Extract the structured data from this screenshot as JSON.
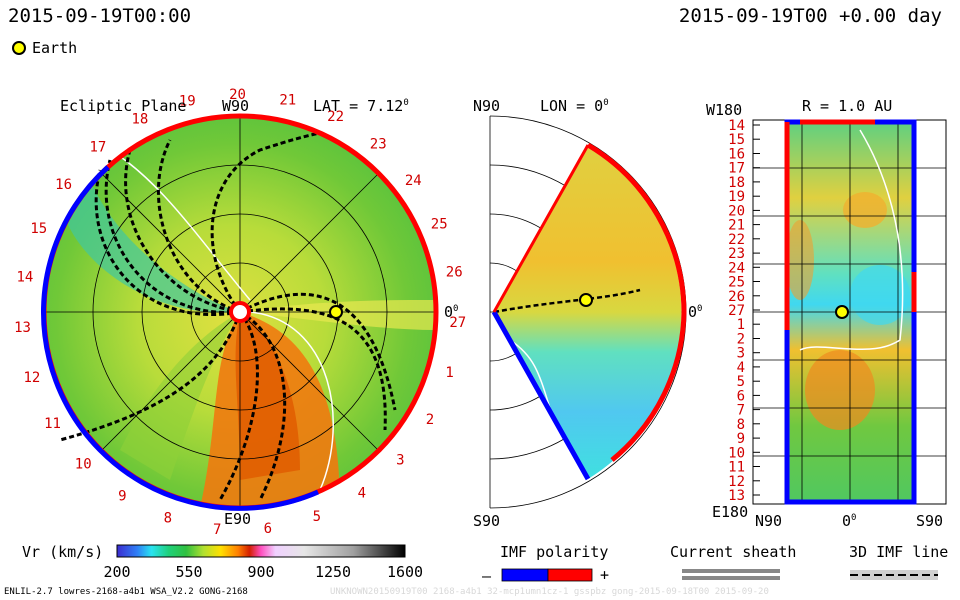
{
  "header": {
    "left_timestamp": "2015-09-19T00:00",
    "right_timestamp": "2015-09-19T00 +0.00 day",
    "legend_earth": "Earth"
  },
  "panels": {
    "ecliptic": {
      "title": "Ecliptic Plane",
      "top_label": "W90",
      "bottom_label": "E90",
      "lat_label": "LAT = 7.12",
      "lat_unit": "0",
      "right_label": "0",
      "right_unit": "0"
    },
    "meridional": {
      "top_left": "N90",
      "bottom_left": "S90",
      "lon_label": "LON = 0",
      "lon_unit": "0",
      "right_label": "0",
      "right_unit": "0"
    },
    "radial": {
      "top_left": "W180",
      "title": "R = 1.0 AU",
      "bottom_left": "E180",
      "x_left": "N90",
      "x_mid": "0",
      "x_mid_unit": "0",
      "x_right": "S90"
    }
  },
  "colorbar": {
    "label": "Vr (km/s)",
    "ticks": [
      "200",
      "550",
      "900",
      "1250",
      "1600"
    ]
  },
  "imf_polarity": {
    "label": "IMF polarity",
    "minus": "–",
    "plus": "+"
  },
  "current_sheath": {
    "label": "Current sheath"
  },
  "imf_line": {
    "label": "3D IMF line"
  },
  "footer": {
    "left": "ENLIL-2.7 lowres-2168-a4b1 WSA_V2.2 GONG-2168",
    "right": "UNKNOWN20150919T00 2168-a4b1 32-mcp1umn1cz-1 gsspbz gong-2015-09-18T00 2015-09-20"
  },
  "chart_data": {
    "type": "heatmap",
    "quantity": "Vr (km/s)",
    "colorbar_range": [
      200,
      1600
    ],
    "carrington_labels_ecliptic": [
      "19",
      "20",
      "21",
      "22",
      "23",
      "24",
      "25",
      "26",
      "27",
      "1",
      "2",
      "3",
      "4",
      "5",
      "6",
      "7",
      "8",
      "9",
      "10",
      "11",
      "12",
      "13",
      "14",
      "15",
      "16",
      "17",
      "18"
    ],
    "carrington_labels_radial": [
      "14",
      "15",
      "16",
      "17",
      "18",
      "19",
      "20",
      "21",
      "22",
      "23",
      "24",
      "25",
      "26",
      "27",
      "1",
      "2",
      "3",
      "4",
      "5",
      "6",
      "7",
      "8",
      "9",
      "10",
      "11",
      "12",
      "13"
    ],
    "earth_position": {
      "lat_deg": 7.12,
      "lon_deg": 0,
      "r_au": 1.0
    },
    "colors": {
      "positive_polarity": "#ff0000",
      "negative_polarity": "#0000ff",
      "earth_marker": "#ffff00",
      "carrington_label": "#d00000"
    }
  }
}
